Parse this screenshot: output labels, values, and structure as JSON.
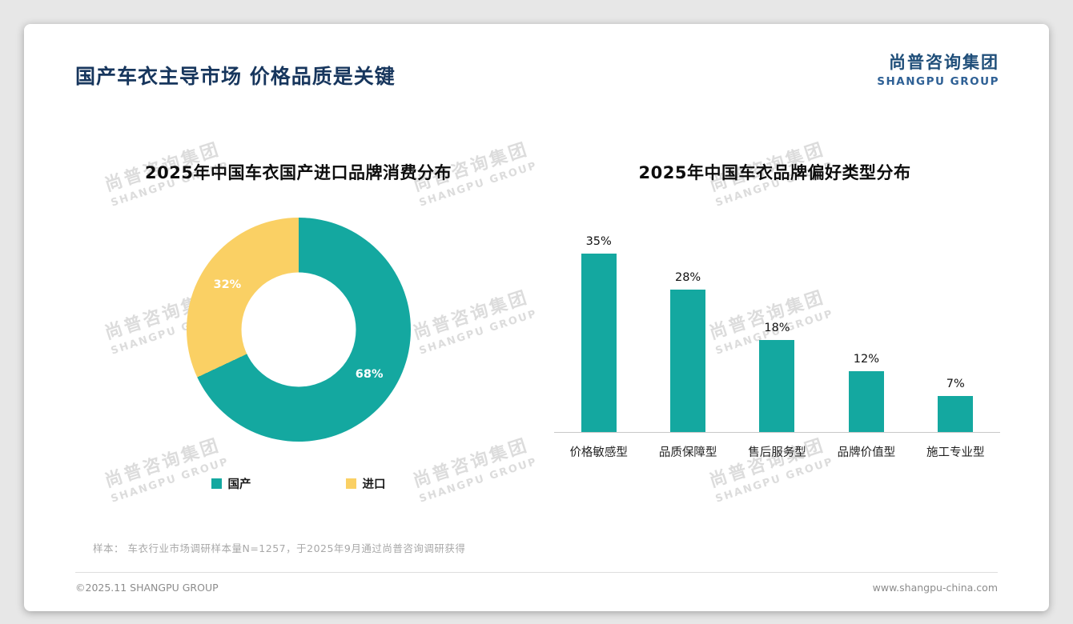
{
  "header": {
    "title": "国产车衣主导市场 价格品质是关键",
    "logo_cn": "尚普咨询集团",
    "logo_en": "SHANGPU GROUP"
  },
  "watermark": {
    "cn": "尚普咨询集团",
    "en": "SHANGPU GROUP"
  },
  "chart_data": [
    {
      "type": "pie",
      "variant": "donut",
      "title": "2025年中国车衣国产进口品牌消费分布",
      "labels": [
        "国产",
        "进口"
      ],
      "values": [
        68,
        32
      ],
      "value_labels": [
        "68%",
        "32%"
      ],
      "colors": [
        "#14a8a0",
        "#fad064"
      ],
      "start_angle_deg": 0,
      "legend_position": "bottom"
    },
    {
      "type": "bar",
      "title": "2025年中国车衣品牌偏好类型分布",
      "categories": [
        "价格敏感型",
        "品质保障型",
        "售后服务型",
        "品牌价值型",
        "施工专业型"
      ],
      "values": [
        35,
        28,
        18,
        12,
        7
      ],
      "value_labels": [
        "35%",
        "28%",
        "18%",
        "12%",
        "7%"
      ],
      "bar_color": "#14a8a0",
      "ylim": [
        0,
        40
      ],
      "grid": false,
      "legend": false
    }
  ],
  "footnote": "样本： 车衣行业市场调研样本量N=1257，于2025年9月通过尚普咨询调研获得",
  "footer": {
    "left": "©2025.11 SHANGPU GROUP",
    "right": "www.shangpu-china.com"
  },
  "colors": {
    "accent_teal": "#14a8a0",
    "accent_yellow": "#fad064",
    "logo_navy": "#1f4e79",
    "title_navy": "#17365d"
  }
}
